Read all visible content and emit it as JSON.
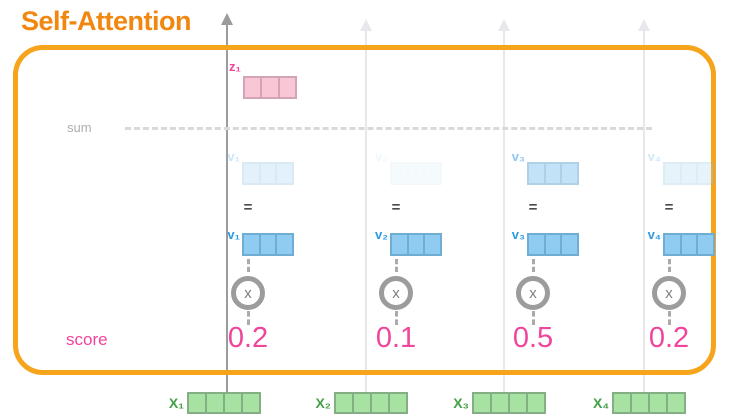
{
  "title": "Self-Attention",
  "diagram": {
    "output_vector": {
      "label": "z₁"
    },
    "sum_label": "sum",
    "equals_sign": "=",
    "multiply_sign": "x",
    "score_label": "score",
    "columns": [
      {
        "weighted_label": "v₁",
        "value_label": "v₁",
        "score": "0.2",
        "input_label": "X₁",
        "weighted_opacity": "0.25"
      },
      {
        "weighted_label": "v₂",
        "value_label": "v₂",
        "score": "0.1",
        "input_label": "X₂",
        "weighted_opacity": "0.08"
      },
      {
        "weighted_label": "v₃",
        "value_label": "v₃",
        "score": "0.5",
        "input_label": "X₃",
        "weighted_opacity": "0.55"
      },
      {
        "weighted_label": "v₄",
        "value_label": "v₄",
        "score": "0.2",
        "input_label": "X₄",
        "weighted_opacity": "0.22"
      }
    ]
  },
  "colors": {
    "title_orange": "#F1870F",
    "frame_orange": "#F7A41D",
    "pink": "#F0459C",
    "blue": "#2D9BE0",
    "green": "#43A047"
  }
}
